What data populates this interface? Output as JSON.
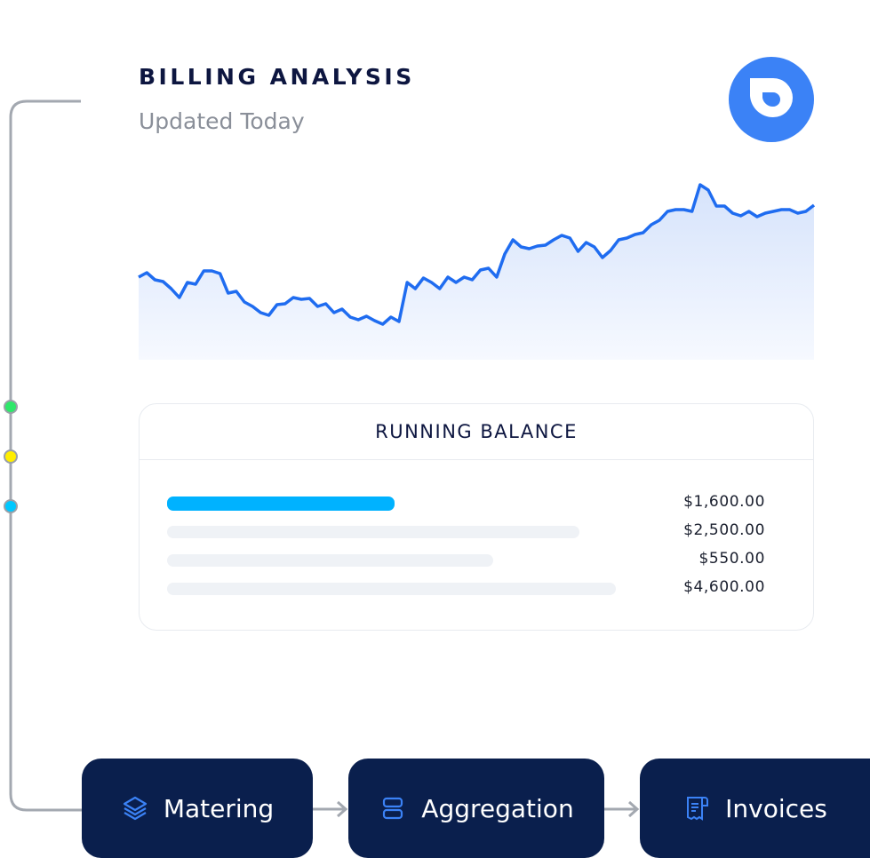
{
  "header": {
    "title": "BILLING ANALYSIS",
    "subtitle": "Updated Today"
  },
  "colors": {
    "accent": "#1f6cf0",
    "navy": "#0a1f4d",
    "active_bar": "#00b2ff",
    "dot_green": "#2ee86a",
    "dot_yellow": "#ffee00",
    "dot_cyan": "#00c8ff"
  },
  "chart_data": {
    "type": "area",
    "values": [
      93,
      98,
      90,
      88,
      80,
      70,
      87,
      85,
      100,
      100,
      97,
      75,
      77,
      65,
      60,
      53,
      50,
      62,
      63,
      70,
      68,
      69,
      60,
      63,
      53,
      57,
      48,
      45,
      49,
      44,
      40,
      48,
      43,
      87,
      80,
      92,
      87,
      80,
      93,
      87,
      93,
      90,
      101,
      103,
      93,
      119,
      135,
      127,
      125,
      128,
      129,
      135,
      140,
      137,
      122,
      132,
      127,
      115,
      123,
      135,
      137,
      141,
      143,
      152,
      157,
      167,
      169,
      169,
      167,
      197,
      191,
      173,
      173,
      165,
      162,
      167,
      161,
      165,
      167,
      169,
      169,
      165,
      167,
      174
    ],
    "grid": false,
    "axes": false
  },
  "balance": {
    "title": "RUNNING BALANCE",
    "rows": [
      {
        "amount": "$1,600.00",
        "fill": 0.38,
        "active": true
      },
      {
        "amount": "$2,500.00",
        "fill": 0.69,
        "active": false
      },
      {
        "amount": "$550.00",
        "fill": 0.545,
        "active": false
      },
      {
        "amount": "$4,600.00",
        "fill": 0.75,
        "active": false
      }
    ]
  },
  "pipeline": [
    {
      "label": "Matering",
      "icon": "layers-icon"
    },
    {
      "label": "Aggregation",
      "icon": "stack-icon"
    },
    {
      "label": "Invoices",
      "icon": "receipt-icon"
    }
  ]
}
